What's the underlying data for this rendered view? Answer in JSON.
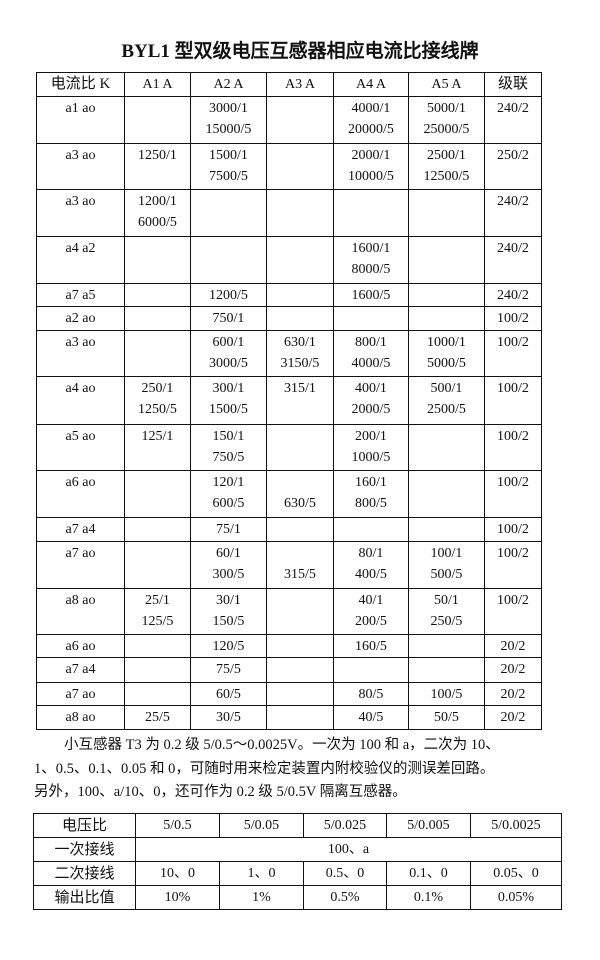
{
  "title": "BYL1 型双级电压互感器相应电流比接线牌",
  "current_table": {
    "headers": [
      "电流比 K",
      "A1 A",
      "A2 A",
      "A3 A",
      "A4 A",
      "A5 A",
      "级联"
    ],
    "rows": [
      {
        "k": "a1 ao",
        "cells": [
          [],
          [
            "3000/1",
            "15000/5"
          ],
          [],
          [
            "4000/1",
            "20000/5"
          ],
          [
            "5000/1",
            "25000/5"
          ]
        ],
        "cascade": "240/2"
      },
      {
        "k": "a3 ao",
        "cells": [
          [
            "1250/1"
          ],
          [
            "1500/1",
            "7500/5"
          ],
          [],
          [
            "2000/1",
            "10000/5"
          ],
          [
            "2500/1",
            "12500/5"
          ]
        ],
        "cascade": "250/2"
      },
      {
        "k": "a3 ao",
        "cells": [
          [
            "1200/1",
            "6000/5"
          ],
          [],
          [],
          [],
          []
        ],
        "cascade": "240/2"
      },
      {
        "k": "a4 a2",
        "cells": [
          [],
          [],
          [],
          [
            "1600/1",
            "8000/5"
          ],
          []
        ],
        "cascade": "240/2"
      },
      {
        "k": "a7 a5",
        "cells": [
          [],
          [
            "1200/5"
          ],
          [],
          [
            "1600/5"
          ],
          []
        ],
        "cascade": "240/2"
      },
      {
        "k": "a2 ao",
        "cells": [
          [],
          [
            "750/1"
          ],
          [],
          [],
          []
        ],
        "cascade": "100/2"
      },
      {
        "k": "a3 ao",
        "cells": [
          [],
          [
            "600/1",
            "3000/5"
          ],
          [
            "630/1",
            "3150/5"
          ],
          [
            "800/1",
            "4000/5"
          ],
          [
            "1000/1",
            "5000/5"
          ]
        ],
        "cascade": "100/2"
      },
      {
        "k": "a4 ao",
        "cells": [
          [
            "250/1",
            "1250/5"
          ],
          [
            "300/1",
            "1500/5"
          ],
          [
            "315/1"
          ],
          [
            "400/1",
            "2000/5"
          ],
          [
            "500/1",
            "2500/5"
          ]
        ],
        "cascade": "100/2"
      },
      {
        "k": "a5 ao",
        "cells": [
          [
            "125/1"
          ],
          [
            "150/1",
            "750/5"
          ],
          [],
          [
            "200/1",
            "1000/5"
          ],
          []
        ],
        "cascade": "100/2"
      },
      {
        "k": "a6 ao",
        "cells": [
          [],
          [
            "120/1",
            "600/5"
          ],
          [
            "",
            "630/5"
          ],
          [
            "160/1",
            "800/5"
          ],
          []
        ],
        "cascade": "100/2"
      },
      {
        "k": "a7 a4",
        "cells": [
          [],
          [
            "75/1"
          ],
          [],
          [],
          []
        ],
        "cascade": "100/2"
      },
      {
        "k": "a7 ao",
        "cells": [
          [],
          [
            "60/1",
            "300/5"
          ],
          [
            "",
            "315/5"
          ],
          [
            "80/1",
            "400/5"
          ],
          [
            "100/1",
            "500/5"
          ]
        ],
        "cascade": "100/2"
      },
      {
        "k": "a8 ao",
        "cells": [
          [
            "25/1",
            "125/5"
          ],
          [
            "30/1",
            "150/5"
          ],
          [],
          [
            "40/1",
            "200/5"
          ],
          [
            "50/1",
            "250/5"
          ]
        ],
        "cascade": "100/2"
      },
      {
        "k": "a6 ao",
        "cells": [
          [],
          [
            "120/5"
          ],
          [],
          [
            "160/5"
          ],
          []
        ],
        "cascade": "20/2"
      },
      {
        "k": "a7 a4",
        "cells": [
          [],
          [
            "75/5"
          ],
          [],
          [],
          []
        ],
        "cascade": "20/2"
      },
      {
        "k": "a7 ao",
        "cells": [
          [],
          [
            "60/5"
          ],
          [],
          [
            "80/5"
          ],
          [
            "100/5"
          ]
        ],
        "cascade": "20/2"
      },
      {
        "k": "a8 ao",
        "cells": [
          [
            "25/5"
          ],
          [
            "30/5"
          ],
          [],
          [
            "40/5"
          ],
          [
            "50/5"
          ]
        ],
        "cascade": "20/2"
      }
    ]
  },
  "paragraph": [
    "小互感器 T3 为 0.2 级 5/0.5～0.0025V。一次为 100 和 a，二次为 10、",
    "1、0.5、0.1、0.05 和 0，可随时用来检定装置内附校验仪的测误差回路。",
    "另外，100、a/10、0，还可作为 0.2 级 5/0.5V 隔离互感器。"
  ],
  "voltage_table": {
    "header_label": "电压比",
    "ratios": [
      "5/0.5",
      "5/0.05",
      "5/0.025",
      "5/0.005",
      "5/0.0025"
    ],
    "primary_label": "一次接线",
    "primary_value": "100、a",
    "secondary_label": "二次接线",
    "secondary": [
      "10、0",
      "1、0",
      "0.5、0",
      "0.1、0",
      "0.05、0"
    ],
    "output_label": "输出比值",
    "output": [
      "10%",
      "1%",
      "0.5%",
      "0.1%",
      "0.05%"
    ]
  }
}
